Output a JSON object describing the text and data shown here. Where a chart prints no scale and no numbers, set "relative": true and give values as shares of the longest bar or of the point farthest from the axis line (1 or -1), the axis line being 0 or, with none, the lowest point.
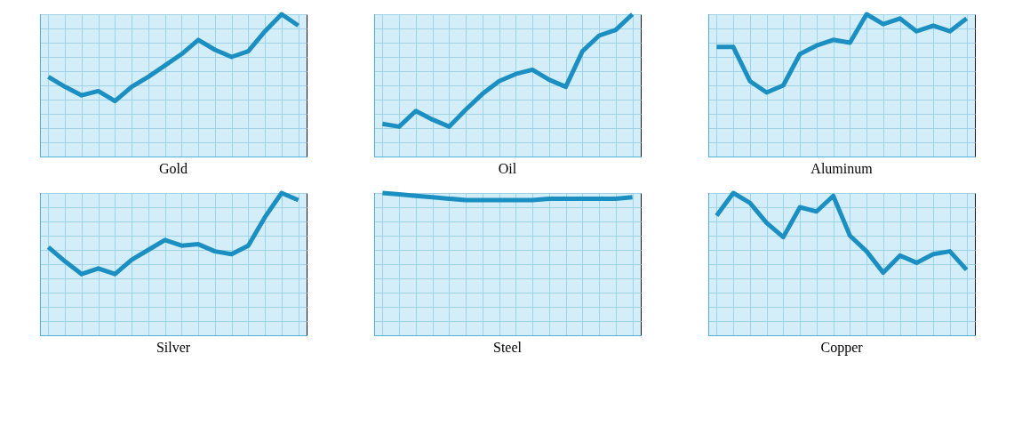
{
  "chart_data": [
    {
      "type": "line",
      "title": "Gold",
      "relative": true,
      "grid": true,
      "color": "#1b8fc2",
      "categories": [
        null,
        null,
        null,
        null,
        null,
        null,
        null,
        null,
        null,
        null,
        null,
        null,
        null,
        null,
        null,
        null
      ],
      "values": [
        0.56,
        0.49,
        0.43,
        0.46,
        0.39,
        0.49,
        0.56,
        0.64,
        0.72,
        0.82,
        0.75,
        0.7,
        0.74,
        0.88,
        1,
        0.92
      ]
    },
    {
      "type": "line",
      "title": "Oil",
      "relative": true,
      "grid": true,
      "color": "#1b8fc2",
      "categories": [
        null,
        null,
        null,
        null,
        null,
        null,
        null,
        null,
        null,
        null,
        null,
        null,
        null,
        null,
        null,
        null
      ],
      "values": [
        0.23,
        0.21,
        0.32,
        0.26,
        0.21,
        0.33,
        0.44,
        0.53,
        0.58,
        0.61,
        0.54,
        0.49,
        0.74,
        0.85,
        0.89,
        1
      ]
    },
    {
      "type": "line",
      "title": "Aluminum",
      "relative": true,
      "grid": true,
      "color": "#1b8fc2",
      "categories": [
        null,
        null,
        null,
        null,
        null,
        null,
        null,
        null,
        null,
        null,
        null,
        null,
        null,
        null,
        null,
        null
      ],
      "values": [
        0.77,
        0.77,
        0.53,
        0.45,
        0.5,
        0.72,
        0.78,
        0.82,
        0.8,
        1,
        0.93,
        0.97,
        0.88,
        0.92,
        0.88,
        0.97
      ]
    },
    {
      "type": "line",
      "title": "Silver",
      "relative": true,
      "grid": true,
      "color": "#1b8fc2",
      "categories": [
        null,
        null,
        null,
        null,
        null,
        null,
        null,
        null,
        null,
        null,
        null,
        null,
        null,
        null,
        null,
        null
      ],
      "values": [
        0.62,
        0.52,
        0.43,
        0.47,
        0.43,
        0.53,
        0.6,
        0.67,
        0.63,
        0.64,
        0.59,
        0.57,
        0.63,
        0.83,
        1,
        0.95
      ]
    },
    {
      "type": "line",
      "title": "Steel",
      "relative": true,
      "grid": true,
      "color": "#1b8fc2",
      "categories": [
        null,
        null,
        null,
        null,
        null,
        null,
        null,
        null,
        null,
        null,
        null,
        null,
        null,
        null,
        null,
        null
      ],
      "values": [
        1,
        0.99,
        0.98,
        0.97,
        0.96,
        0.95,
        0.95,
        0.95,
        0.95,
        0.95,
        0.96,
        0.96,
        0.96,
        0.96,
        0.96,
        0.97
      ]
    },
    {
      "type": "line",
      "title": "Copper",
      "relative": true,
      "grid": true,
      "color": "#1b8fc2",
      "categories": [
        null,
        null,
        null,
        null,
        null,
        null,
        null,
        null,
        null,
        null,
        null,
        null,
        null,
        null,
        null,
        null
      ],
      "values": [
        0.84,
        1,
        0.93,
        0.79,
        0.69,
        0.9,
        0.87,
        0.98,
        0.7,
        0.59,
        0.44,
        0.56,
        0.51,
        0.57,
        0.59,
        0.46
      ]
    }
  ]
}
